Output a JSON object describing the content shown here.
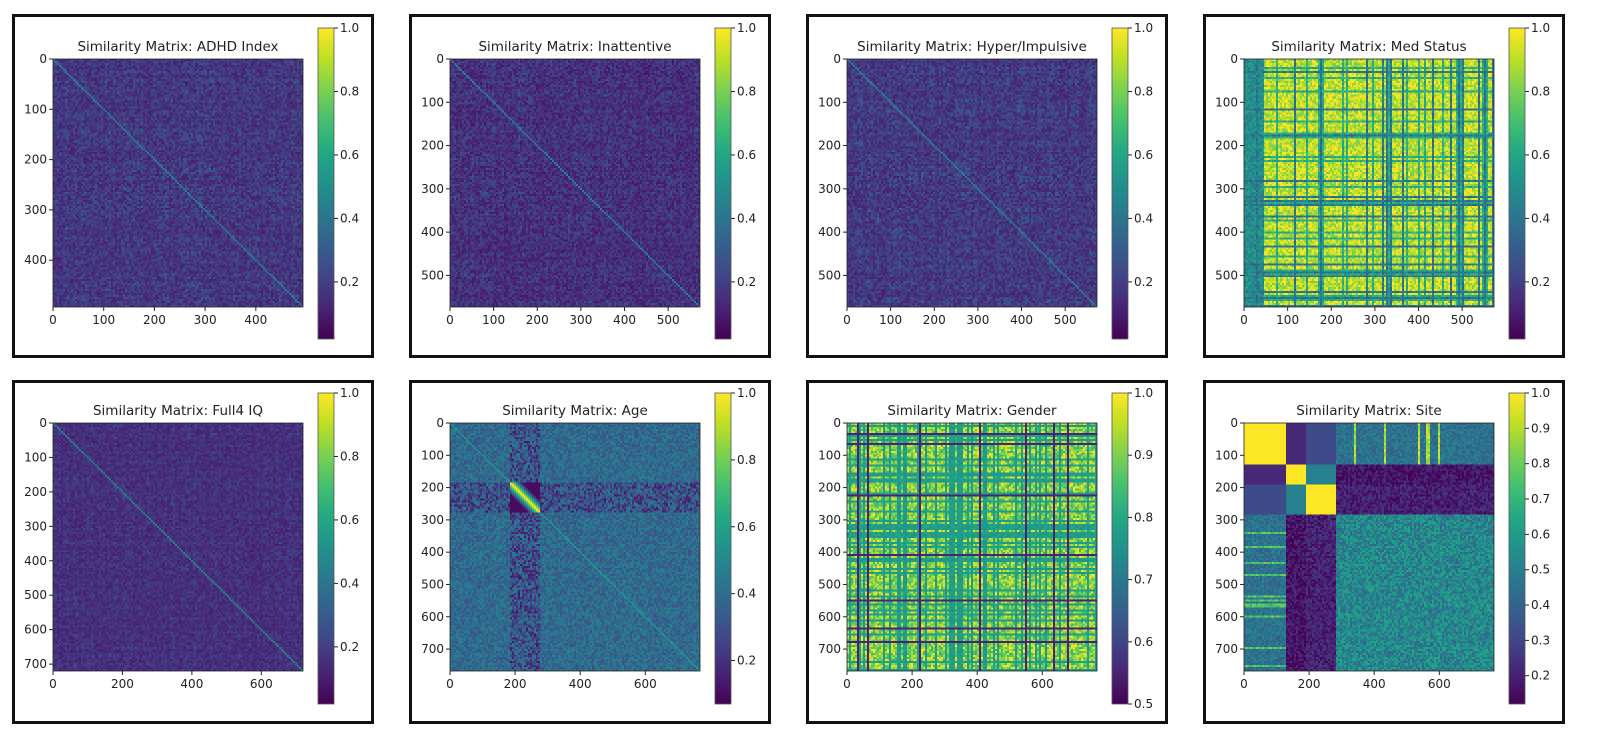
{
  "chart_data": [
    {
      "type": "heatmap",
      "title": "Similarity Matrix: ADHD Index",
      "n": 493,
      "xticks": [
        0,
        100,
        200,
        300,
        400
      ],
      "yticks": [
        0,
        100,
        200,
        300,
        400
      ],
      "colorbar": {
        "ticks": [
          "0.2",
          "0.4",
          "0.6",
          "0.8",
          "1.0"
        ],
        "range": [
          0.02,
          1.0
        ]
      },
      "colormap": "viridis",
      "pattern": "low-noise",
      "base": 0.1,
      "noise": 0.2,
      "diagonal": 1.0
    },
    {
      "type": "heatmap",
      "title": "Similarity Matrix: Inattentive",
      "n": 573,
      "xticks": [
        0,
        100,
        200,
        300,
        400,
        500
      ],
      "yticks": [
        0,
        100,
        200,
        300,
        400,
        500
      ],
      "colorbar": {
        "ticks": [
          "0.2",
          "0.4",
          "0.6",
          "0.8",
          "1.0"
        ],
        "range": [
          0.02,
          1.0
        ]
      },
      "colormap": "viridis",
      "pattern": "low-noise",
      "base": 0.08,
      "noise": 0.2,
      "diagonal": 1.0
    },
    {
      "type": "heatmap",
      "title": "Similarity Matrix: Hyper/Impulsive",
      "n": 573,
      "xticks": [
        0,
        100,
        200,
        300,
        400,
        500
      ],
      "yticks": [
        0,
        100,
        200,
        300,
        400,
        500
      ],
      "colorbar": {
        "ticks": [
          "0.2",
          "0.4",
          "0.6",
          "0.8",
          "1.0"
        ],
        "range": [
          0.02,
          1.0
        ]
      },
      "colormap": "viridis",
      "pattern": "low-noise",
      "base": 0.1,
      "noise": 0.22,
      "diagonal": 1.0
    },
    {
      "type": "heatmap",
      "title": "Similarity Matrix: Med Status",
      "n": 573,
      "xticks": [
        0,
        100,
        200,
        300,
        400,
        500
      ],
      "yticks": [
        0,
        100,
        200,
        300,
        400,
        500
      ],
      "colorbar": {
        "ticks": [
          "0.2",
          "0.4",
          "0.6",
          "0.8",
          "1.0"
        ],
        "range": [
          0.02,
          1.0
        ]
      },
      "colormap": "viridis",
      "pattern": "stripes-high",
      "base": 0.85,
      "noise": 0.2,
      "diagonal": 1.0
    },
    {
      "type": "heatmap",
      "title": "Similarity Matrix: Full4 IQ",
      "n": 720,
      "xticks": [
        0,
        200,
        400,
        600
      ],
      "yticks": [
        0,
        100,
        200,
        300,
        400,
        500,
        600,
        700
      ],
      "colorbar": {
        "ticks": [
          "0.2",
          "0.4",
          "0.6",
          "0.8",
          "1.0"
        ],
        "range": [
          0.02,
          1.0
        ]
      },
      "colormap": "viridis",
      "pattern": "low-noise",
      "base": 0.1,
      "noise": 0.14,
      "diagonal": 0.5
    },
    {
      "type": "heatmap",
      "title": "Similarity Matrix: Age",
      "n": 768,
      "xticks": [
        0,
        200,
        400,
        600
      ],
      "yticks": [
        0,
        100,
        200,
        300,
        400,
        500,
        600,
        700
      ],
      "colorbar": {
        "ticks": [
          "0.2",
          "0.4",
          "0.6",
          "0.8",
          "1.0"
        ],
        "range": [
          0.07,
          1.0
        ]
      },
      "colormap": "viridis",
      "pattern": "age",
      "base": 0.35,
      "noise": 0.2,
      "diagonal": 1.0
    },
    {
      "type": "heatmap",
      "title": "Similarity Matrix: Gender",
      "n": 768,
      "xticks": [
        0,
        200,
        400,
        600
      ],
      "yticks": [
        0,
        100,
        200,
        300,
        400,
        500,
        600,
        700
      ],
      "colorbar": {
        "ticks": [
          "0.5",
          "0.6",
          "0.7",
          "0.8",
          "0.9",
          "1.0"
        ],
        "range": [
          0.5,
          1.0
        ]
      },
      "colormap": "viridis",
      "pattern": "gender",
      "base": 0.78,
      "noise": 0.15,
      "diagonal": 1.0
    },
    {
      "type": "heatmap",
      "title": "Similarity Matrix: Site",
      "n": 768,
      "xticks": [
        0,
        200,
        400,
        600
      ],
      "yticks": [
        0,
        100,
        200,
        300,
        400,
        500,
        600,
        700
      ],
      "colorbar": {
        "ticks": [
          "0.2",
          "0.3",
          "0.4",
          "0.5",
          "0.6",
          "0.7",
          "0.8",
          "0.9",
          "1.0"
        ],
        "range": [
          0.12,
          1.0
        ]
      },
      "colormap": "viridis",
      "pattern": "site",
      "blocks": [
        0,
        125,
        185,
        278,
        768
      ],
      "base": 0.45,
      "noise": 0.2,
      "diagonal": 1.0
    }
  ]
}
